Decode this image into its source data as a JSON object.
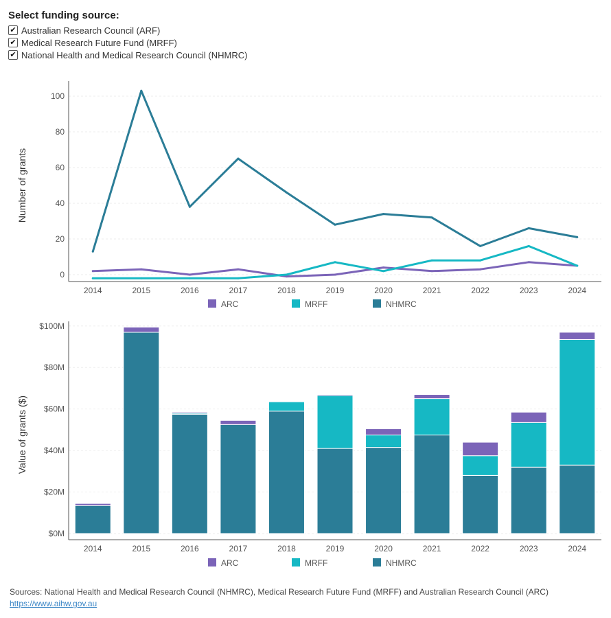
{
  "filter": {
    "title": "Select funding source:",
    "check_mark": "✔",
    "options": [
      {
        "label": "Australian Research Council (ARF)",
        "checked": true
      },
      {
        "label": "Medical Research Future Fund (MRFF)",
        "checked": true
      },
      {
        "label": "National Health and Medical Research Council (NHMRC)",
        "checked": true
      }
    ]
  },
  "colors": {
    "ARC": "#7b64b8",
    "MRFF": "#16b8c4",
    "NHMRC": "#2b7d97"
  },
  "legend": [
    "ARC",
    "MRFF",
    "NHMRC"
  ],
  "chart_data": [
    {
      "type": "line",
      "title": "",
      "xlabel": "",
      "ylabel": "Number of grants",
      "x": [
        "2014",
        "2015",
        "2016",
        "2017",
        "2018",
        "2019",
        "2020",
        "2021",
        "2022",
        "2023",
        "2024"
      ],
      "ylim": [
        0,
        110
      ],
      "yticks": [
        "0",
        "20",
        "40",
        "60",
        "80",
        "100"
      ],
      "series": [
        {
          "name": "ARC",
          "values": [
            2,
            3,
            0,
            3,
            -1,
            0,
            4,
            2,
            3,
            7,
            5
          ]
        },
        {
          "name": "MRFF",
          "values": [
            -2,
            -2,
            -2,
            -2,
            0,
            7,
            2,
            8,
            8,
            16,
            5
          ]
        },
        {
          "name": "NHMRC",
          "values": [
            13,
            103,
            38,
            65,
            46,
            28,
            34,
            32,
            16,
            26,
            21
          ]
        }
      ],
      "grid": true,
      "legend_position": "bottom"
    },
    {
      "type": "bar",
      "stacked": true,
      "title": "",
      "xlabel": "",
      "ylabel": "Value of grants ($)",
      "categories": [
        "2014",
        "2015",
        "2016",
        "2017",
        "2018",
        "2019",
        "2020",
        "2021",
        "2022",
        "2023",
        "2024"
      ],
      "ylim": [
        0,
        104
      ],
      "yticks": [
        "$0M",
        "$20M",
        "$40M",
        "$60M",
        "$80M",
        "$100M"
      ],
      "series": [
        {
          "name": "NHMRC",
          "values": [
            13.5,
            97,
            57.5,
            52.5,
            59,
            41,
            41.5,
            47.5,
            28,
            32,
            33
          ]
        },
        {
          "name": "MRFF",
          "values": [
            0,
            0,
            0.5,
            0,
            4.5,
            25.5,
            6,
            17.5,
            9.5,
            21.5,
            60.5
          ]
        },
        {
          "name": "ARC",
          "values": [
            1,
            2.5,
            0.5,
            2,
            0,
            0.5,
            3,
            2,
            6.5,
            5,
            3.5
          ]
        }
      ],
      "grid": true,
      "legend_position": "bottom"
    }
  ],
  "footer": {
    "sources": "Sources: National Health and Medical Research Council (NHMRC), Medical Research Future Fund (MRFF) and Australian Research Council (ARC)",
    "link": "https://www.aihw.gov.au"
  }
}
